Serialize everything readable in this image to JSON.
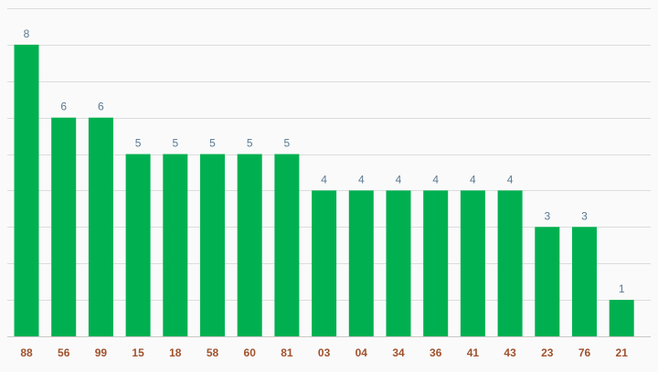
{
  "chart_data": {
    "type": "bar",
    "categories": [
      "88",
      "56",
      "99",
      "15",
      "18",
      "58",
      "60",
      "81",
      "03",
      "04",
      "34",
      "36",
      "41",
      "43",
      "23",
      "76",
      "21"
    ],
    "values": [
      8,
      6,
      6,
      5,
      5,
      5,
      5,
      5,
      4,
      4,
      4,
      4,
      4,
      4,
      3,
      3,
      1
    ],
    "title": "",
    "xlabel": "",
    "ylabel": "",
    "ylim": [
      0,
      9
    ],
    "grid": true,
    "data_labels": true,
    "colors": {
      "bar": "#00b050",
      "value_label": "#5a7a94",
      "category_label": "#a0522d",
      "grid": "#dcdcdc"
    }
  }
}
